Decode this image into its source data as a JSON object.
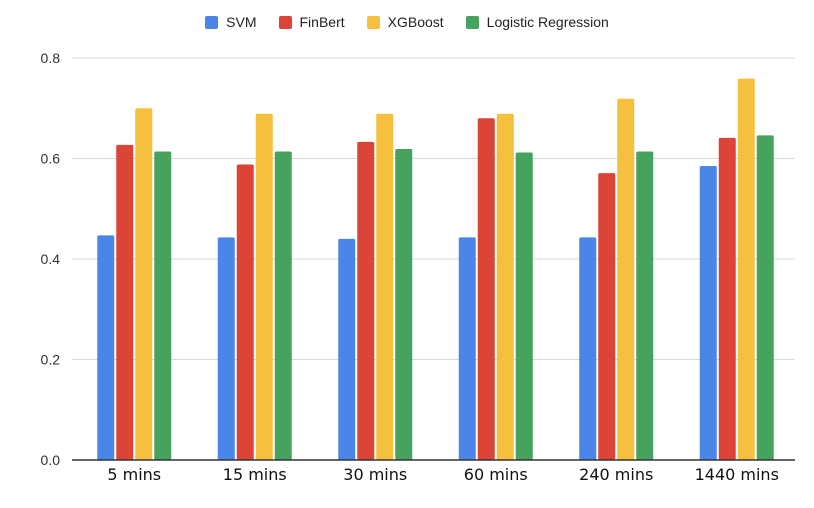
{
  "colors": {
    "SVM": "#4a86e8",
    "FinBert": "#db4437",
    "XGBoost": "#f4c03d",
    "Logistic Regression": "#46a35e",
    "grid": "#d9d9d9",
    "axis": "#333333"
  },
  "chart_data": {
    "type": "bar",
    "title": "",
    "xlabel": "",
    "ylabel": "",
    "categories": [
      "5 mins",
      "15 mins",
      "30 mins",
      "60 mins",
      "240 mins",
      "1440 mins"
    ],
    "series": [
      {
        "name": "SVM",
        "values": [
          0.447,
          0.443,
          0.44,
          0.443,
          0.443,
          0.585
        ]
      },
      {
        "name": "FinBert",
        "values": [
          0.627,
          0.588,
          0.633,
          0.68,
          0.571,
          0.641
        ]
      },
      {
        "name": "XGBoost",
        "values": [
          0.7,
          0.689,
          0.689,
          0.689,
          0.719,
          0.759
        ]
      },
      {
        "name": "Logistic Regression",
        "values": [
          0.614,
          0.614,
          0.619,
          0.612,
          0.614,
          0.646
        ]
      }
    ],
    "ylim": [
      0,
      0.8
    ],
    "yticks": [
      "0.0",
      "0.2",
      "0.4",
      "0.6",
      "0.8"
    ],
    "grid": true,
    "legend_position": "top"
  }
}
